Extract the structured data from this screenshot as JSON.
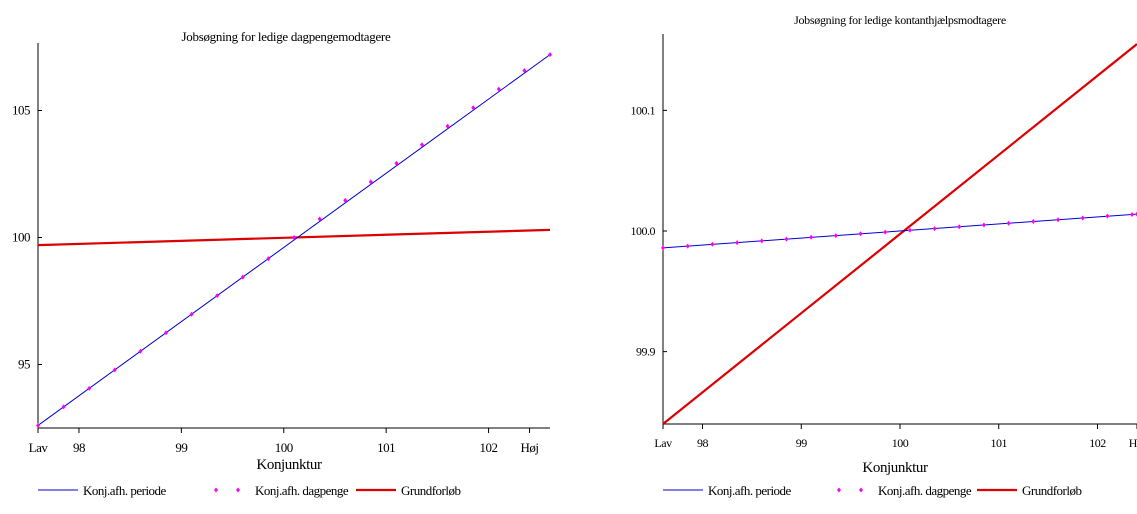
{
  "chart_data": [
    {
      "type": "line",
      "title": "Jobsøgning for ledige dagpengemodtagere",
      "xlabel": "Konjunktur",
      "ylabel": "",
      "xlim": [
        97.6,
        102.6
      ],
      "ylim": [
        92.5,
        107.5
      ],
      "x_ticks": [
        {
          "value": 97.6,
          "label": "Lav"
        },
        {
          "value": 98,
          "label": "98"
        },
        {
          "value": 99,
          "label": "99"
        },
        {
          "value": 100,
          "label": "100"
        },
        {
          "value": 101,
          "label": "101"
        },
        {
          "value": 102,
          "label": "102"
        },
        {
          "value": 102.4,
          "label": "Høj"
        }
      ],
      "y_ticks": [
        {
          "value": 95,
          "label": "95"
        },
        {
          "value": 100,
          "label": "100"
        },
        {
          "value": 105,
          "label": "105"
        }
      ],
      "grid": false,
      "legend_position": "bottom",
      "series": [
        {
          "name": "Konj.afh. periode",
          "style": "line",
          "color": "#0000cc",
          "x": [
            97.6,
            102.6
          ],
          "y": [
            92.6,
            107.2
          ]
        },
        {
          "name": "Konj.afh. dagpenge",
          "style": "markers",
          "color": "#ff00ff",
          "x": [
            97.6,
            97.85,
            98.1,
            98.35,
            98.6,
            98.85,
            99.1,
            99.35,
            99.6,
            99.85,
            100.1,
            100.35,
            100.6,
            100.85,
            101.1,
            101.35,
            101.6,
            101.85,
            102.1,
            102.35,
            102.6
          ],
          "y": [
            92.6,
            93.33,
            94.06,
            94.79,
            95.52,
            96.25,
            96.98,
            97.71,
            98.44,
            99.17,
            100.0,
            100.73,
            101.46,
            102.19,
            102.92,
            103.65,
            104.38,
            105.11,
            105.84,
            106.57,
            107.2
          ]
        },
        {
          "name": "Grundforløb",
          "style": "thick-line",
          "color": "#dd0000",
          "x": [
            97.6,
            102.6
          ],
          "y": [
            99.7,
            100.3
          ]
        }
      ]
    },
    {
      "type": "line",
      "title": "Jobsøgning for ledige kontanthjælpsmodtagere",
      "xlabel": "Konjunktur",
      "ylabel": "",
      "xlim": [
        97.6,
        102.4
      ],
      "ylim": [
        99.84,
        100.16
      ],
      "x_ticks": [
        {
          "value": 97.6,
          "label": "Lav"
        },
        {
          "value": 98,
          "label": "98"
        },
        {
          "value": 99,
          "label": "99"
        },
        {
          "value": 100,
          "label": "100"
        },
        {
          "value": 101,
          "label": "101"
        },
        {
          "value": 102,
          "label": "102"
        },
        {
          "value": 102.4,
          "label": "Høj"
        }
      ],
      "y_ticks": [
        {
          "value": 99.9,
          "label": "99.9"
        },
        {
          "value": 100.0,
          "label": "100.0"
        },
        {
          "value": 100.1,
          "label": "100.1"
        }
      ],
      "grid": false,
      "legend_position": "bottom",
      "series": [
        {
          "name": "Konj.afh. periode",
          "style": "line",
          "color": "#0000cc",
          "x": [
            97.6,
            102.4
          ],
          "y": [
            99.986,
            100.014
          ]
        },
        {
          "name": "Konj.afh. dagpenge",
          "style": "markers",
          "color": "#ff00ff",
          "x": [
            97.6,
            97.85,
            98.1,
            98.35,
            98.6,
            98.85,
            99.1,
            99.35,
            99.6,
            99.85,
            100.1,
            100.35,
            100.6,
            100.85,
            101.1,
            101.35,
            101.6,
            101.85,
            102.1,
            102.35,
            102.4
          ],
          "y": [
            99.986,
            99.9875,
            99.989,
            99.9904,
            99.9918,
            99.9933,
            99.9948,
            99.9962,
            99.9977,
            99.9991,
            100.0006,
            100.002,
            100.0035,
            100.005,
            100.0064,
            100.0079,
            100.0093,
            100.0108,
            100.0123,
            100.0137,
            100.014
          ]
        },
        {
          "name": "Grundforløb",
          "style": "thick-line",
          "color": "#dd0000",
          "x": [
            97.6,
            102.4
          ],
          "y": [
            99.84,
            100.155
          ]
        }
      ]
    }
  ]
}
